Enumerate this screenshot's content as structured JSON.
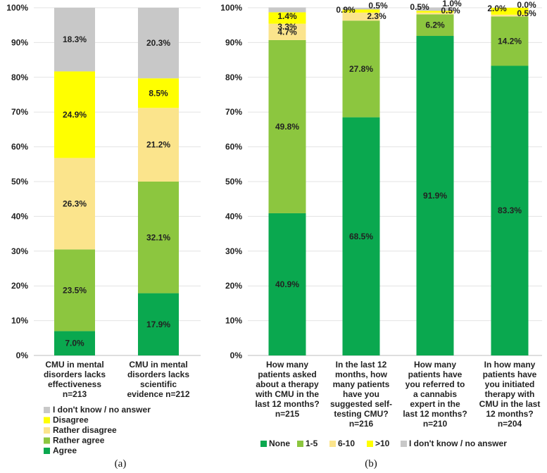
{
  "colors": {
    "agree": "#0aa84f",
    "rather_agree": "#8cc63f",
    "rather_disagree": "#fbe48c",
    "disagree": "#ffff00",
    "unknown": "#c8c8c8"
  },
  "chart_data": [
    {
      "type": "bar",
      "stacked": true,
      "panel_label": "(a)",
      "ylim": [
        0,
        100
      ],
      "yticks": [
        "0%",
        "10%",
        "20%",
        "30%",
        "40%",
        "50%",
        "60%",
        "70%",
        "80%",
        "90%",
        "100%"
      ],
      "categories": [
        [
          "CMU in mental",
          "disorders lacks",
          "effectiveness",
          "n=213"
        ],
        [
          "CMU in mental",
          "disorders lacks",
          "scientific",
          "evidence n=212"
        ]
      ],
      "series": [
        {
          "name": "Agree",
          "color": "#0aa84f",
          "values": [
            7.0,
            17.9
          ],
          "labels": [
            "7.0%",
            "17.9%"
          ]
        },
        {
          "name": "Rather agree",
          "color": "#8cc63f",
          "values": [
            23.5,
            32.1
          ],
          "labels": [
            "23.5%",
            "32.1%"
          ]
        },
        {
          "name": "Rather disagree",
          "color": "#fbe48c",
          "values": [
            26.3,
            21.2
          ],
          "labels": [
            "26.3%",
            "21.2%"
          ]
        },
        {
          "name": "Disagree",
          "color": "#ffff00",
          "values": [
            24.9,
            8.5
          ],
          "labels": [
            "24.9%",
            "8.5%"
          ]
        },
        {
          "name": "I don't know / no answer",
          "color": "#c8c8c8",
          "values": [
            18.3,
            20.3
          ],
          "labels": [
            "18.3%",
            "20.3%"
          ]
        }
      ],
      "legend": [
        "I don't know / no answer",
        "Disagree",
        "Rather disagree",
        "Rather agree",
        "Agree"
      ]
    },
    {
      "type": "bar",
      "stacked": true,
      "panel_label": "(b)",
      "ylim": [
        0,
        100
      ],
      "yticks": [
        "0%",
        "10%",
        "20%",
        "30%",
        "40%",
        "50%",
        "60%",
        "70%",
        "80%",
        "90%",
        "100%"
      ],
      "categories": [
        [
          "How many",
          "patients asked",
          "about a therapy",
          "with CMU in the",
          "last 12 months?",
          "n=215"
        ],
        [
          "In the last 12",
          "months, how",
          "many patients",
          "have you",
          "suggested self-",
          "testing CMU?",
          "n=216"
        ],
        [
          "How many",
          "patients have",
          "you referred to",
          "a cannabis",
          "expert in the",
          "last 12 months?",
          "n=210"
        ],
        [
          "In how many",
          "patients have",
          "you initiated",
          "therapy with",
          "CMU in the last",
          "12 months?",
          "n=204"
        ]
      ],
      "series": [
        {
          "name": "None",
          "color": "#0aa84f",
          "values": [
            40.9,
            68.5,
            91.9,
            83.3
          ],
          "labels": [
            "40.9%",
            "68.5%",
            "91.9%",
            "83.3%"
          ]
        },
        {
          "name": "1-5",
          "color": "#8cc63f",
          "values": [
            49.8,
            27.8,
            6.2,
            14.2
          ],
          "labels": [
            "49.8%",
            "27.8%",
            "6.2%",
            "14.2%"
          ]
        },
        {
          "name": "6-10",
          "color": "#fbe48c",
          "values": [
            4.7,
            2.3,
            0.5,
            0.5
          ],
          "labels": [
            "4.7%",
            "2.3%",
            "0.5%",
            "0.5%"
          ]
        },
        {
          "name": ">10",
          "color": "#ffff00",
          "values": [
            3.3,
            0.9,
            0.5,
            2.0
          ],
          "labels": [
            "3.3%",
            "0.9%",
            "0.5%",
            "2.0%"
          ]
        },
        {
          "name": "I don't know / no answer",
          "color": "#c8c8c8",
          "values": [
            1.4,
            0.5,
            1.0,
            0.0
          ],
          "labels": [
            "1.4%",
            "0.5%",
            "1.0%",
            "0.0%"
          ]
        }
      ],
      "legend": [
        "None",
        "1-5",
        "6-10",
        ">10",
        "I don't know / no answer"
      ]
    }
  ]
}
